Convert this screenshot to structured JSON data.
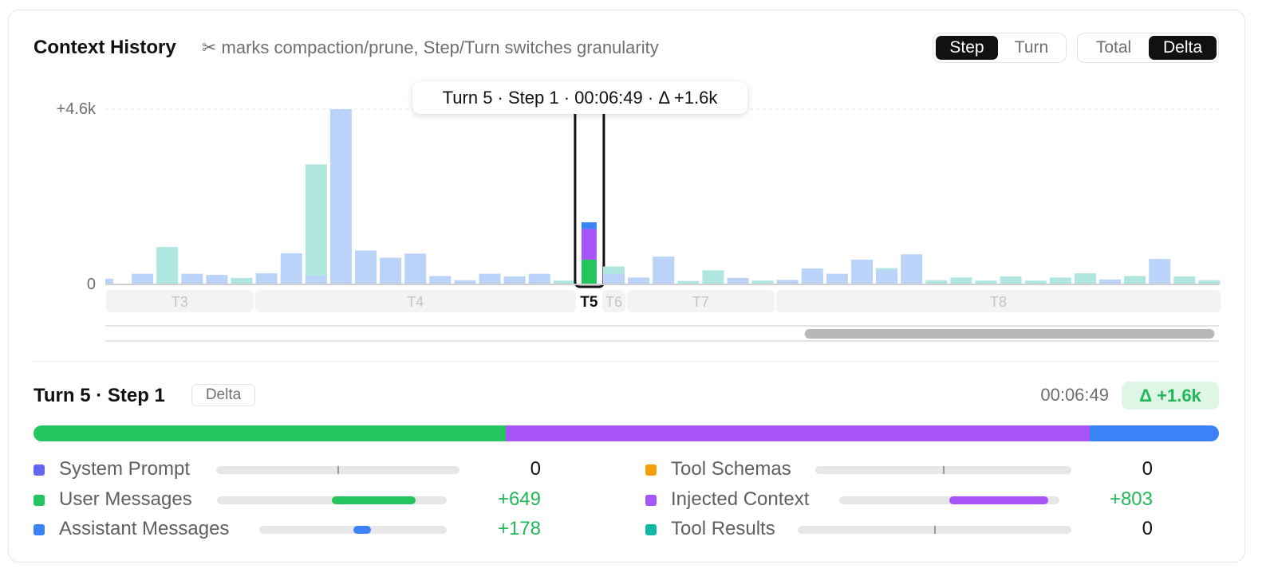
{
  "header": {
    "title": "Context History",
    "subtitle": "✂ marks compaction/prune, Step/Turn switches granularity"
  },
  "granularity_toggle": {
    "options": [
      "Step",
      "Turn"
    ],
    "selected": "Step"
  },
  "mode_toggle": {
    "options": [
      "Total",
      "Delta"
    ],
    "selected": "Delta"
  },
  "y_axis": {
    "top_label": "+4.6k",
    "zero_label": "0"
  },
  "tooltip": "Turn 5 · Step 1 · 00:06:49 · Δ +1.6k",
  "colors": {
    "system": "#6366f1",
    "user": "#22c55e",
    "assistant": "#3b82f6",
    "schemas": "#f59e0b",
    "injected": "#a855f7",
    "tool_results": "#14b8a6",
    "bar_teal": "#afe6e0",
    "bar_blue": "#bcd3f9"
  },
  "chart_data": {
    "type": "bar",
    "y_max": 4600,
    "turn_labels": [
      {
        "label": "T3",
        "from": 0,
        "to": 5,
        "active": false
      },
      {
        "label": "T4",
        "from": 6,
        "to": 18,
        "active": false
      },
      {
        "label": "T5",
        "from": 19,
        "to": 19,
        "active": true
      },
      {
        "label": "T6",
        "from": 20,
        "to": 20,
        "active": false
      },
      {
        "label": "T7",
        "from": 21,
        "to": 26,
        "active": false
      },
      {
        "label": "T8",
        "from": 27,
        "to": 44,
        "active": false
      }
    ],
    "selected_index": 19,
    "bars": [
      {
        "teal": 0,
        "blue": 150
      },
      {
        "teal": 60,
        "blue": 280
      },
      {
        "teal": 980,
        "blue": 0
      },
      {
        "teal": 60,
        "blue": 280
      },
      {
        "teal": 0,
        "blue": 250
      },
      {
        "teal": 170,
        "blue": 0
      },
      {
        "teal": 0,
        "blue": 290
      },
      {
        "teal": 260,
        "blue": 820
      },
      {
        "teal": 3150,
        "blue": 230
      },
      {
        "teal": 0,
        "blue": 4600
      },
      {
        "teal": 0,
        "blue": 890
      },
      {
        "teal": 150,
        "blue": 700
      },
      {
        "teal": 130,
        "blue": 810
      },
      {
        "teal": 0,
        "blue": 220
      },
      {
        "teal": 0,
        "blue": 110
      },
      {
        "teal": 60,
        "blue": 280
      },
      {
        "teal": 0,
        "blue": 210
      },
      {
        "teal": 70,
        "blue": 280
      },
      {
        "teal": 100,
        "blue": 0
      },
      {
        "user": 649,
        "injected": 803,
        "assistant": 178
      },
      {
        "teal": 470,
        "blue": 280
      },
      {
        "teal": 0,
        "blue": 180
      },
      {
        "teal": 0,
        "blue": 730
      },
      {
        "teal": 90,
        "blue": 0
      },
      {
        "teal": 370,
        "blue": 0
      },
      {
        "teal": 0,
        "blue": 170
      },
      {
        "teal": 100,
        "blue": 0
      },
      {
        "teal": 0,
        "blue": 120
      },
      {
        "teal": 330,
        "blue": 420
      },
      {
        "teal": 60,
        "blue": 280
      },
      {
        "teal": 610,
        "blue": 650
      },
      {
        "teal": 430,
        "blue": 380
      },
      {
        "teal": 0,
        "blue": 790
      },
      {
        "teal": 110,
        "blue": 0
      },
      {
        "teal": 180,
        "blue": 0
      },
      {
        "teal": 100,
        "blue": 0
      },
      {
        "teal": 210,
        "blue": 0
      },
      {
        "teal": 100,
        "blue": 0
      },
      {
        "teal": 180,
        "blue": 0
      },
      {
        "teal": 290,
        "blue": 0
      },
      {
        "teal": 0,
        "blue": 130
      },
      {
        "teal": 220,
        "blue": 0
      },
      {
        "teal": 0,
        "blue": 670
      },
      {
        "teal": 210,
        "blue": 0
      },
      {
        "teal": 110,
        "blue": 0
      }
    ]
  },
  "scrollbar": {
    "thumb_start": 0.628,
    "thumb_end": 0.996
  },
  "detail": {
    "title": "Turn 5 · Step 1",
    "mode_badge": "Delta",
    "time": "00:06:49",
    "delta": "Δ +1.6k",
    "stack": [
      {
        "key": "user",
        "value": 649
      },
      {
        "key": "injected",
        "value": 803
      },
      {
        "key": "assistant",
        "value": 178
      }
    ],
    "legend": [
      {
        "label": "System Prompt",
        "color_key": "system",
        "value": "0",
        "frac": 0,
        "nonzero": false
      },
      {
        "label": "User Messages",
        "color_key": "user",
        "value": "+649",
        "frac": 0.81,
        "nonzero": true
      },
      {
        "label": "Assistant Messages",
        "color_key": "assistant",
        "value": "+178",
        "frac": 0.22,
        "nonzero": true
      },
      {
        "label": "Tool Schemas",
        "color_key": "schemas",
        "value": "0",
        "frac": 0,
        "nonzero": false
      },
      {
        "label": "Injected Context",
        "color_key": "injected",
        "value": "+803",
        "frac": 1.0,
        "nonzero": true
      },
      {
        "label": "Tool Results",
        "color_key": "tool_results",
        "value": "0",
        "frac": 0,
        "nonzero": false
      }
    ]
  }
}
